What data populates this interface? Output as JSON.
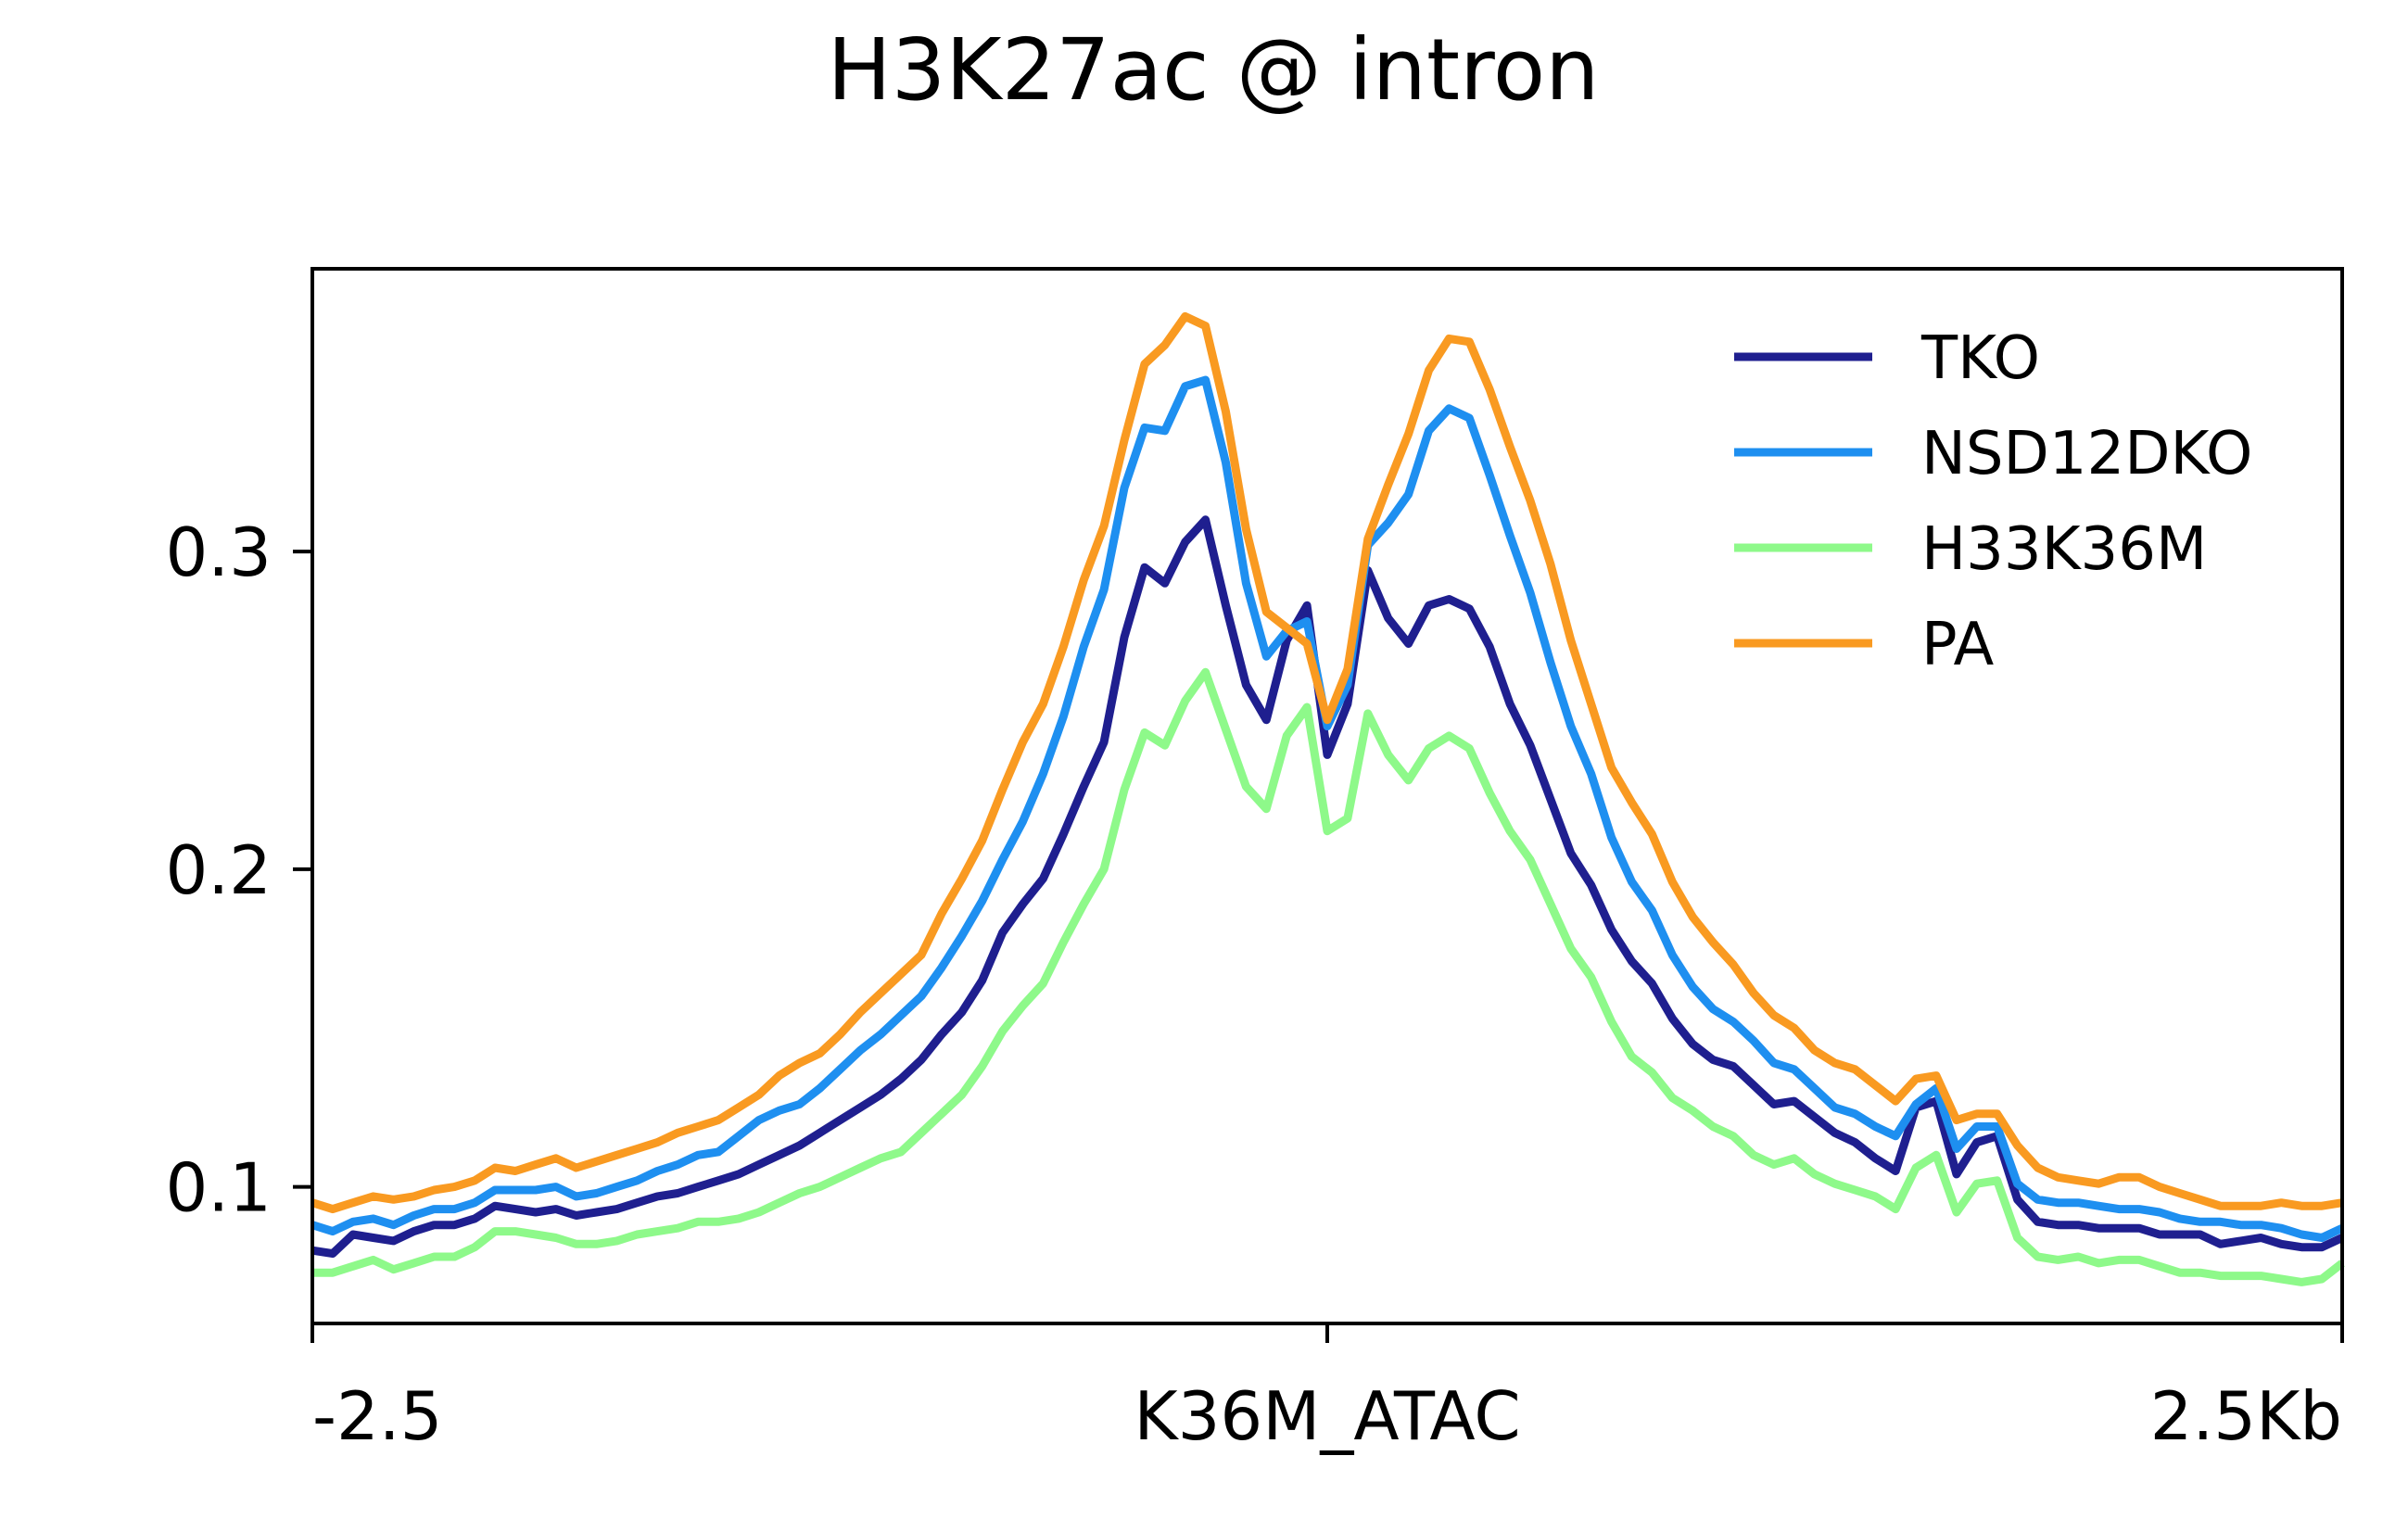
{
  "chart_data": {
    "type": "line",
    "title": "H3K27ac @ intron",
    "xlabel": "",
    "ylabel": "",
    "x_tick_labels": [
      "-2.5",
      "K36M_ATAC",
      "2.5Kb"
    ],
    "x_ticks": [
      -2.5,
      0,
      2.5
    ],
    "xlim": [
      -2.5,
      2.5
    ],
    "y_tick_labels": [
      "0.1",
      "0.2",
      "0.3"
    ],
    "y_ticks": [
      0.1,
      0.2,
      0.3
    ],
    "ylim": [
      0.057,
      0.389
    ],
    "legend_position": "top-right",
    "grid": false,
    "x": [
      -2.5,
      -2.45,
      -2.4,
      -2.35,
      -2.3,
      -2.25,
      -2.2,
      -2.15,
      -2.1,
      -2.05,
      -2.0,
      -1.95,
      -1.9,
      -1.85,
      -1.8,
      -1.75,
      -1.7,
      -1.65,
      -1.6,
      -1.55,
      -1.5,
      -1.45,
      -1.4,
      -1.35,
      -1.3,
      -1.25,
      -1.2,
      -1.15,
      -1.1,
      -1.05,
      -1.0,
      -0.95,
      -0.9,
      -0.85,
      -0.8,
      -0.75,
      -0.7,
      -0.65,
      -0.6,
      -0.55,
      -0.5,
      -0.45,
      -0.4,
      -0.35,
      -0.3,
      -0.25,
      -0.2,
      -0.15,
      -0.1,
      -0.05,
      0.0,
      0.05,
      0.1,
      0.15,
      0.2,
      0.25,
      0.3,
      0.35,
      0.4,
      0.45,
      0.5,
      0.55,
      0.6,
      0.65,
      0.7,
      0.75,
      0.8,
      0.85,
      0.9,
      0.95,
      1.0,
      1.05,
      1.1,
      1.15,
      1.2,
      1.25,
      1.3,
      1.35,
      1.4,
      1.45,
      1.5,
      1.55,
      1.6,
      1.65,
      1.7,
      1.75,
      1.8,
      1.85,
      1.9,
      1.95,
      2.0,
      2.05,
      2.1,
      2.15,
      2.2,
      2.25,
      2.3,
      2.35,
      2.4,
      2.45,
      2.5
    ],
    "series": [
      {
        "name": "TKO",
        "color": "#1f1f8f",
        "values": [
          0.08,
          0.079,
          0.085,
          0.084,
          0.083,
          0.086,
          0.088,
          0.088,
          0.09,
          0.094,
          0.093,
          0.092,
          0.093,
          0.091,
          0.092,
          0.093,
          0.095,
          0.097,
          0.098,
          0.1,
          0.102,
          0.104,
          0.107,
          0.11,
          0.113,
          0.117,
          0.121,
          0.125,
          0.129,
          0.134,
          0.14,
          0.148,
          0.155,
          0.165,
          0.18,
          0.189,
          0.197,
          0.211,
          0.226,
          0.24,
          0.273,
          0.295,
          0.29,
          0.303,
          0.31,
          0.283,
          0.258,
          0.247,
          0.272,
          0.283,
          0.236,
          0.252,
          0.294,
          0.279,
          0.271,
          0.283,
          0.285,
          0.282,
          0.27,
          0.252,
          0.239,
          0.222,
          0.205,
          0.195,
          0.181,
          0.171,
          0.164,
          0.153,
          0.145,
          0.14,
          0.138,
          0.132,
          0.126,
          0.127,
          0.122,
          0.117,
          0.114,
          0.109,
          0.105,
          0.125,
          0.127,
          0.104,
          0.114,
          0.116,
          0.096,
          0.089,
          0.088,
          0.088,
          0.087,
          0.087,
          0.087,
          0.085,
          0.085,
          0.085,
          0.082,
          0.083,
          0.084,
          0.082,
          0.081,
          0.081,
          0.084
        ]
      },
      {
        "name": "NSD12DKO",
        "color": "#1e8ff0",
        "values": [
          0.088,
          0.086,
          0.089,
          0.09,
          0.088,
          0.091,
          0.093,
          0.093,
          0.095,
          0.099,
          0.099,
          0.099,
          0.1,
          0.097,
          0.098,
          0.1,
          0.102,
          0.105,
          0.107,
          0.11,
          0.111,
          0.116,
          0.121,
          0.124,
          0.126,
          0.131,
          0.137,
          0.143,
          0.148,
          0.154,
          0.16,
          0.169,
          0.179,
          0.19,
          0.203,
          0.215,
          0.23,
          0.248,
          0.27,
          0.288,
          0.32,
          0.339,
          0.338,
          0.352,
          0.354,
          0.328,
          0.29,
          0.267,
          0.275,
          0.278,
          0.245,
          0.258,
          0.302,
          0.309,
          0.318,
          0.338,
          0.345,
          0.342,
          0.324,
          0.305,
          0.287,
          0.265,
          0.245,
          0.23,
          0.21,
          0.196,
          0.187,
          0.173,
          0.163,
          0.156,
          0.152,
          0.146,
          0.139,
          0.137,
          0.131,
          0.125,
          0.123,
          0.119,
          0.116,
          0.126,
          0.131,
          0.112,
          0.119,
          0.119,
          0.101,
          0.096,
          0.095,
          0.095,
          0.094,
          0.093,
          0.093,
          0.092,
          0.09,
          0.089,
          0.089,
          0.088,
          0.088,
          0.087,
          0.085,
          0.084,
          0.087
        ]
      },
      {
        "name": "H33K36M",
        "color": "#8ef98a",
        "values": [
          0.073,
          0.073,
          0.075,
          0.077,
          0.074,
          0.076,
          0.078,
          0.078,
          0.081,
          0.086,
          0.086,
          0.085,
          0.084,
          0.082,
          0.082,
          0.083,
          0.085,
          0.086,
          0.087,
          0.089,
          0.089,
          0.09,
          0.092,
          0.095,
          0.098,
          0.1,
          0.103,
          0.106,
          0.109,
          0.111,
          0.117,
          0.123,
          0.129,
          0.138,
          0.149,
          0.157,
          0.164,
          0.177,
          0.189,
          0.2,
          0.225,
          0.243,
          0.239,
          0.253,
          0.262,
          0.244,
          0.226,
          0.219,
          0.242,
          0.251,
          0.212,
          0.216,
          0.249,
          0.236,
          0.228,
          0.238,
          0.242,
          0.238,
          0.224,
          0.212,
          0.203,
          0.189,
          0.175,
          0.166,
          0.152,
          0.141,
          0.136,
          0.128,
          0.124,
          0.119,
          0.116,
          0.11,
          0.107,
          0.109,
          0.104,
          0.101,
          0.099,
          0.097,
          0.093,
          0.106,
          0.11,
          0.092,
          0.101,
          0.102,
          0.084,
          0.078,
          0.077,
          0.078,
          0.076,
          0.077,
          0.077,
          0.075,
          0.073,
          0.073,
          0.072,
          0.072,
          0.072,
          0.071,
          0.07,
          0.071,
          0.076
        ]
      },
      {
        "name": "PA",
        "color": "#f99a21",
        "values": [
          0.095,
          0.093,
          0.095,
          0.097,
          0.096,
          0.097,
          0.099,
          0.1,
          0.102,
          0.106,
          0.105,
          0.107,
          0.109,
          0.106,
          0.108,
          0.11,
          0.112,
          0.114,
          0.117,
          0.119,
          0.121,
          0.125,
          0.129,
          0.135,
          0.139,
          0.142,
          0.148,
          0.155,
          0.161,
          0.167,
          0.173,
          0.186,
          0.197,
          0.209,
          0.225,
          0.24,
          0.252,
          0.27,
          0.291,
          0.308,
          0.335,
          0.359,
          0.365,
          0.374,
          0.371,
          0.344,
          0.307,
          0.281,
          0.276,
          0.271,
          0.247,
          0.263,
          0.304,
          0.321,
          0.337,
          0.357,
          0.367,
          0.366,
          0.351,
          0.333,
          0.316,
          0.296,
          0.272,
          0.252,
          0.232,
          0.221,
          0.211,
          0.196,
          0.185,
          0.177,
          0.17,
          0.161,
          0.154,
          0.15,
          0.143,
          0.139,
          0.137,
          0.132,
          0.127,
          0.134,
          0.135,
          0.121,
          0.123,
          0.123,
          0.113,
          0.106,
          0.103,
          0.102,
          0.101,
          0.103,
          0.103,
          0.1,
          0.098,
          0.096,
          0.094,
          0.094,
          0.094,
          0.095,
          0.094,
          0.094,
          0.095
        ]
      }
    ]
  }
}
